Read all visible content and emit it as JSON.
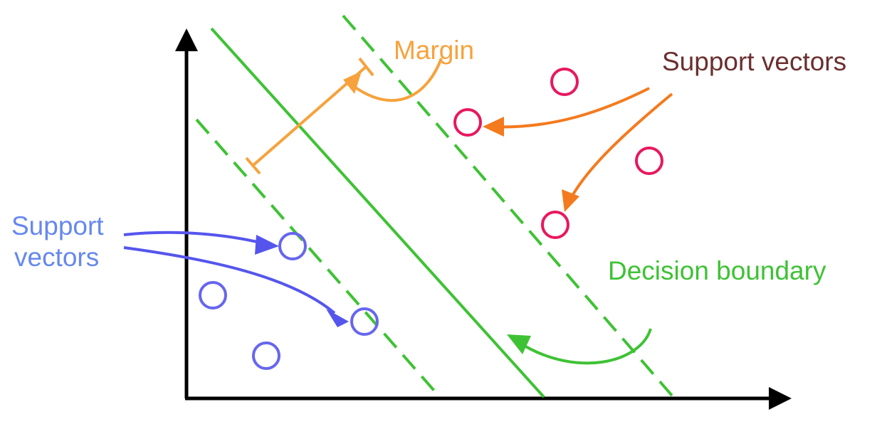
{
  "labels": {
    "margin": "Margin",
    "support_vectors_right": "Support vectors",
    "support_vectors_left_line1": "Support",
    "support_vectors_left_line2": "vectors",
    "decision_boundary": "Decision boundary"
  },
  "colors": {
    "axis": "#000000",
    "boundary": "#3ec234",
    "margin": "#f7a23c",
    "positive_class": "#e8185e",
    "negative_class": "#6666ee",
    "positive_arrow": "#f47a1e",
    "negative_arrow": "#5555ee",
    "support_label_right": "#6b2f2f",
    "support_label_left": "#6688ee"
  }
}
